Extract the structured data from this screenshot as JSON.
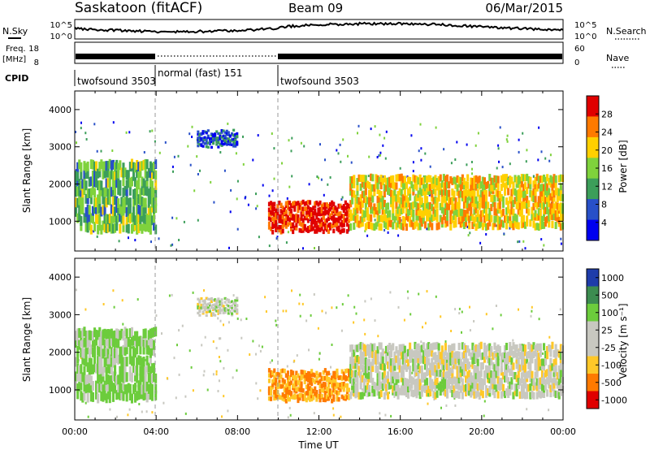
{
  "header": {
    "station": "Saskatoon (fitACF)",
    "beam": "Beam 09",
    "date": "06/Mar/2015"
  },
  "status_panel": {
    "nsky_label": "N.Sky",
    "nsky_ticks": [
      "10^5",
      "10^0"
    ],
    "nsearch_label": "N.Search",
    "freq_label_line1": "Freq.",
    "freq_label_line2": "[MHz]",
    "freq_ticks": [
      "18",
      "8"
    ],
    "nave_label": "Nave",
    "nave_ticks": [
      "60",
      "0"
    ],
    "cpid_label": "CPID",
    "cpid_segments": [
      {
        "name": "twofsound 3503",
        "start": 0,
        "end": 4
      },
      {
        "name": "normal (fast) 151",
        "start": 4,
        "end": 10
      },
      {
        "name": "twofsound 3503",
        "start": 10,
        "end": 24
      }
    ]
  },
  "chart_data": [
    {
      "type": "heatmap",
      "title": "",
      "ylabel": "Slant Range [km]",
      "xlabel": "",
      "xlim": [
        0,
        24
      ],
      "ylim": [
        200,
        4500
      ],
      "yticks": [
        1000,
        2000,
        3000,
        4000
      ],
      "colorbar": {
        "label": "Power [dB]",
        "ticks": [
          "28",
          "24",
          "20",
          "16",
          "12",
          "8",
          "4"
        ],
        "colors": [
          "#e00000",
          "#ff7a00",
          "#ffd000",
          "#7fd23c",
          "#3c9e5a",
          "#2850c8",
          "#0000f0"
        ]
      },
      "regions": [
        {
          "name": "morning band",
          "t": [
            0,
            4
          ],
          "range": [
            700,
            2600
          ],
          "level": 14
        },
        {
          "name": "red patch",
          "t": [
            9.5,
            13.5
          ],
          "range": [
            700,
            1500
          ],
          "level": 28
        },
        {
          "name": "evening band",
          "t": [
            13.5,
            24
          ],
          "range": [
            800,
            2200
          ],
          "level": 20
        },
        {
          "name": "upper patch",
          "t": [
            6,
            8
          ],
          "range": [
            3000,
            3400
          ],
          "level": 8
        }
      ]
    },
    {
      "type": "heatmap",
      "title": "",
      "ylabel": "Slant Range [km]",
      "xlabel": "Time UT",
      "xlim": [
        0,
        24
      ],
      "ylim": [
        200,
        4500
      ],
      "yticks": [
        1000,
        2000,
        3000,
        4000
      ],
      "xticks": [
        "00:00",
        "04:00",
        "08:00",
        "12:00",
        "16:00",
        "20:00",
        "00:00"
      ],
      "colorbar": {
        "label": "Velocity [m s⁻¹]",
        "ticks": [
          "1000",
          "500",
          "100",
          "25",
          "-25",
          "-100",
          "-500",
          "-1000"
        ],
        "colors": [
          "#1e3caa",
          "#3c8c50",
          "#6ccc3c",
          "#c8c8c0",
          "#c8c8c0",
          "#ffc828",
          "#ff7a00",
          "#e00000"
        ]
      },
      "regions": [
        {
          "name": "morning band",
          "t": [
            0,
            4
          ],
          "range": [
            700,
            2600
          ],
          "velocity": 100
        },
        {
          "name": "orange patch",
          "t": [
            9.5,
            13.5
          ],
          "range": [
            700,
            1500
          ],
          "velocity": -300
        },
        {
          "name": "evening band",
          "t": [
            13.5,
            24
          ],
          "range": [
            800,
            2200
          ],
          "velocity": 0
        },
        {
          "name": "upper patch",
          "t": [
            6,
            8
          ],
          "range": [
            3000,
            3400
          ],
          "velocity": 0
        }
      ]
    }
  ]
}
